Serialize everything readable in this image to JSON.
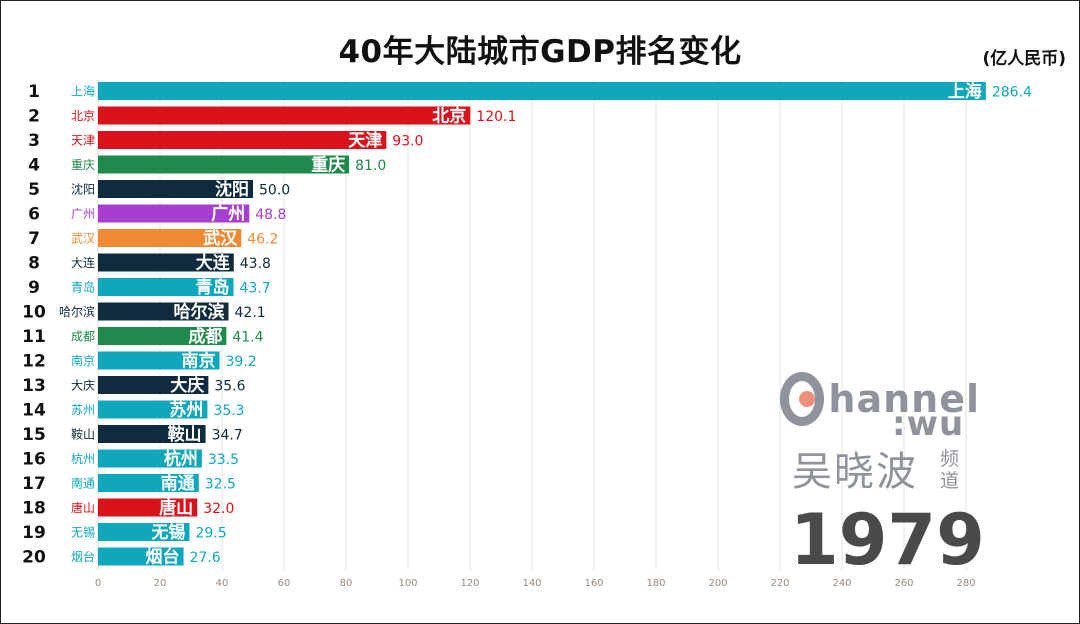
{
  "title": "40年大陆城市GDP排名变化",
  "unit": "(亿人民币)",
  "watermark": {
    "brand_top": "hannel",
    "brand_bottom": ":wu",
    "name": "吴晓波",
    "pindao": "频道"
  },
  "year": "1979",
  "chart_data": {
    "type": "bar",
    "orientation": "horizontal",
    "title": "40年大陆城市GDP排名变化",
    "unit_label": "(亿人民币)",
    "xlim": [
      0,
      280
    ],
    "x_ticks": [
      0,
      20,
      40,
      60,
      80,
      100,
      120,
      140,
      160,
      180,
      200,
      220,
      240,
      260,
      280
    ],
    "grid": true,
    "ranks": [
      1,
      2,
      3,
      4,
      5,
      6,
      7,
      8,
      9,
      10,
      11,
      12,
      13,
      14,
      15,
      16,
      17,
      18,
      19,
      20
    ],
    "categories": [
      "上海",
      "北京",
      "天津",
      "重庆",
      "沈阳",
      "广州",
      "武汉",
      "大连",
      "青岛",
      "哈尔滨",
      "成都",
      "南京",
      "大庆",
      "苏州",
      "鞍山",
      "杭州",
      "南通",
      "唐山",
      "无锡",
      "烟台"
    ],
    "values": [
      286.4,
      120.1,
      93.0,
      81.0,
      50.0,
      48.8,
      46.2,
      43.8,
      43.7,
      42.1,
      41.4,
      39.2,
      35.6,
      35.3,
      34.7,
      33.5,
      32.5,
      32.0,
      29.5,
      27.6
    ],
    "value_labels": [
      "286.4",
      "120.1",
      "93.0",
      "81.0",
      "50.0",
      "48.8",
      "46.2",
      "43.8",
      "43.7",
      "42.1",
      "41.4",
      "39.2",
      "35.6",
      "35.3",
      "34.7",
      "33.5",
      "32.5",
      "32.0",
      "29.5",
      "27.6"
    ],
    "colors": [
      "#0fa7bc",
      "#d9121b",
      "#d9121b",
      "#1f8a4c",
      "#0f2b3d",
      "#a63fcf",
      "#ef8a35",
      "#0f2b3d",
      "#0fa7bc",
      "#0f2b3d",
      "#1f8a4c",
      "#0fa7bc",
      "#0f2b3d",
      "#0fa7bc",
      "#0f2b3d",
      "#0fa7bc",
      "#0fa7bc",
      "#d9121b",
      "#0fa7bc",
      "#0fa7bc"
    ]
  }
}
